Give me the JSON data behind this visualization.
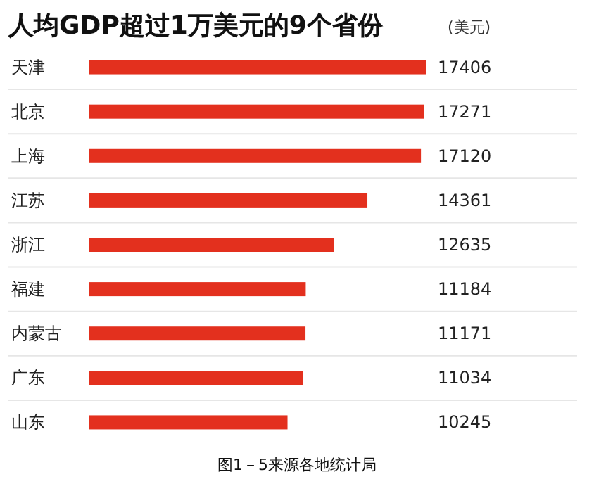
{
  "chart_data": {
    "type": "bar",
    "orientation": "horizontal",
    "title": "人均GDP超过1万美元的9个省份",
    "xlabel": "(美元)",
    "categories": [
      "天津",
      "北京",
      "上海",
      "江苏",
      "浙江",
      "福建",
      "内蒙古",
      "广东",
      "山东"
    ],
    "values": [
      17406,
      17271,
      17120,
      14361,
      12635,
      11184,
      11171,
      11034,
      10245
    ],
    "color": "#e3301e",
    "data_labels": true,
    "annotations": [
      "图1－5来源各地统计局"
    ]
  }
}
